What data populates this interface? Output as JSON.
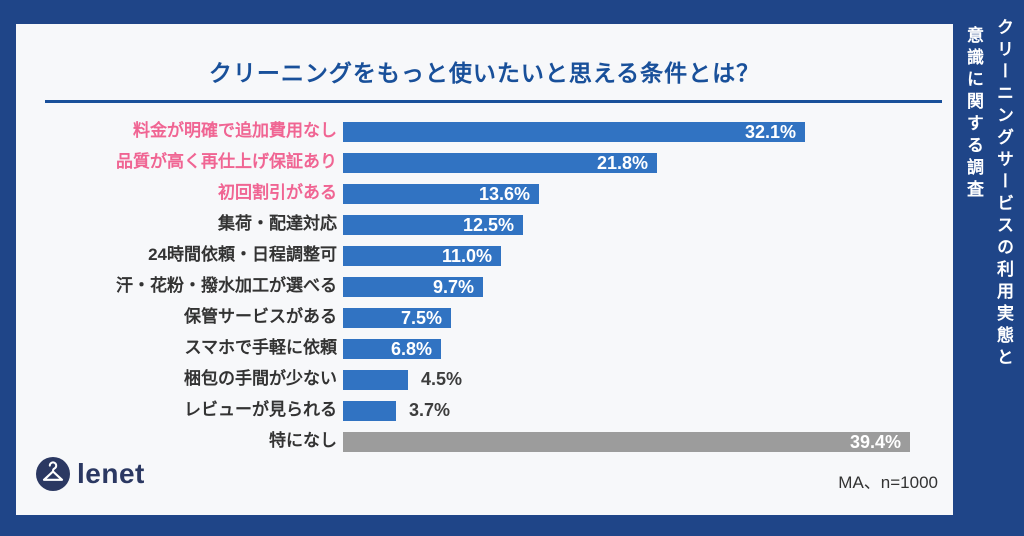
{
  "colors": {
    "frame_bg": "#1f4588",
    "card_bg": "#f7f8fa",
    "bar_blue": "#3173c2",
    "bar_gray": "#9c9c9c",
    "title_blue": "#19509a",
    "pink": "#f06593",
    "dark_text": "#333333",
    "logo_navy": "#2b3862",
    "value_inside": "#ffffff"
  },
  "header": {
    "title": "クリーニングをもっと使いたいと思える条件とは？"
  },
  "sidebar": {
    "line_right": "クリーニングサービスの利用実態と",
    "line_left": "意識に関する調査"
  },
  "chart_data": {
    "type": "bar",
    "orientation": "horizontal",
    "title": "クリーニングをもっと使いたいと思える条件とは？",
    "xlim": [
      0,
      40
    ],
    "legend": "none",
    "grid": false,
    "note": "MA、n=1000",
    "rows": [
      {
        "label": "料金が明確で追加費用なし",
        "value": 32.1,
        "display": "32.1%",
        "label_style": "pink",
        "bar_style": "blue",
        "value_position": "inside"
      },
      {
        "label": "品質が高く再仕上げ保証あり",
        "value": 21.8,
        "display": "21.8%",
        "label_style": "pink",
        "bar_style": "blue",
        "value_position": "inside"
      },
      {
        "label": "初回割引がある",
        "value": 13.6,
        "display": "13.6%",
        "label_style": "pink",
        "bar_style": "blue",
        "value_position": "inside"
      },
      {
        "label": "集荷・配達対応",
        "value": 12.5,
        "display": "12.5%",
        "label_style": "dark",
        "bar_style": "blue",
        "value_position": "inside"
      },
      {
        "label": "24時間依頼・日程調整可",
        "value": 11.0,
        "display": "11.0%",
        "label_style": "dark",
        "bar_style": "blue",
        "value_position": "inside"
      },
      {
        "label": "汗・花粉・撥水加工が選べる",
        "value": 9.7,
        "display": "9.7%",
        "label_style": "dark",
        "bar_style": "blue",
        "value_position": "inside"
      },
      {
        "label": "保管サービスがある",
        "value": 7.5,
        "display": "7.5%",
        "label_style": "dark",
        "bar_style": "blue",
        "value_position": "inside"
      },
      {
        "label": "スマホで手軽に依頼",
        "value": 6.8,
        "display": "6.8%",
        "label_style": "dark",
        "bar_style": "blue",
        "value_position": "inside"
      },
      {
        "label": "梱包の手間が少ない",
        "value": 4.5,
        "display": "4.5%",
        "label_style": "dark",
        "bar_style": "blue",
        "value_position": "outside"
      },
      {
        "label": "レビューが見られる",
        "value": 3.7,
        "display": "3.7%",
        "label_style": "dark",
        "bar_style": "blue",
        "value_position": "outside"
      },
      {
        "label": "特になし",
        "value": 39.4,
        "display": "39.4%",
        "label_style": "dark",
        "bar_style": "gray",
        "value_position": "inside"
      }
    ]
  },
  "footer": {
    "logo_text": "lenet",
    "note": "MA、n=1000"
  }
}
